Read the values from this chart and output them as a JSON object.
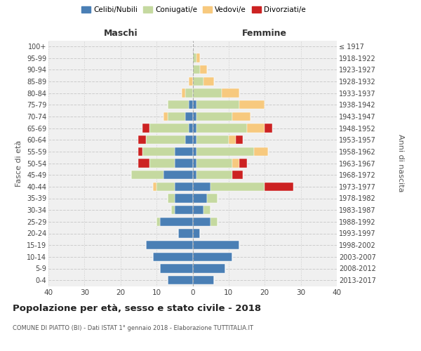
{
  "age_groups": [
    "100+",
    "95-99",
    "90-94",
    "85-89",
    "80-84",
    "75-79",
    "70-74",
    "65-69",
    "60-64",
    "55-59",
    "50-54",
    "45-49",
    "40-44",
    "35-39",
    "30-34",
    "25-29",
    "20-24",
    "15-19",
    "10-14",
    "5-9",
    "0-4"
  ],
  "birth_years": [
    "≤ 1917",
    "1918-1922",
    "1923-1927",
    "1928-1932",
    "1933-1937",
    "1938-1942",
    "1943-1947",
    "1948-1952",
    "1953-1957",
    "1958-1962",
    "1963-1967",
    "1968-1972",
    "1973-1977",
    "1978-1982",
    "1983-1987",
    "1988-1992",
    "1993-1997",
    "1998-2002",
    "2003-2007",
    "2008-2012",
    "2013-2017"
  ],
  "colors": {
    "celibi": "#4a7fb5",
    "coniugati": "#c5d9a0",
    "vedovi": "#f7c97e",
    "divorziati": "#cc2222"
  },
  "maschi": {
    "celibi": [
      0,
      0,
      0,
      0,
      0,
      1,
      2,
      1,
      2,
      5,
      5,
      8,
      5,
      5,
      5,
      9,
      4,
      13,
      11,
      9,
      7
    ],
    "coniugati": [
      0,
      0,
      0,
      0,
      2,
      6,
      5,
      11,
      11,
      9,
      7,
      9,
      5,
      2,
      1,
      1,
      0,
      0,
      0,
      0,
      0
    ],
    "vedovi": [
      0,
      0,
      0,
      1,
      1,
      0,
      1,
      0,
      0,
      0,
      0,
      0,
      1,
      0,
      0,
      0,
      0,
      0,
      0,
      0,
      0
    ],
    "divorziati": [
      0,
      0,
      0,
      0,
      0,
      0,
      0,
      2,
      2,
      1,
      3,
      0,
      0,
      0,
      0,
      0,
      0,
      0,
      0,
      0,
      0
    ]
  },
  "femmine": {
    "celibi": [
      0,
      0,
      0,
      0,
      0,
      1,
      1,
      1,
      1,
      1,
      1,
      1,
      5,
      4,
      3,
      5,
      2,
      13,
      11,
      9,
      6
    ],
    "coniugati": [
      0,
      1,
      2,
      3,
      8,
      12,
      10,
      14,
      9,
      16,
      10,
      10,
      15,
      3,
      2,
      2,
      0,
      0,
      0,
      0,
      0
    ],
    "vedovi": [
      0,
      1,
      2,
      3,
      5,
      7,
      5,
      5,
      2,
      4,
      2,
      0,
      0,
      0,
      0,
      0,
      0,
      0,
      0,
      0,
      0
    ],
    "divorziati": [
      0,
      0,
      0,
      0,
      0,
      0,
      0,
      2,
      2,
      0,
      2,
      3,
      8,
      0,
      0,
      0,
      0,
      0,
      0,
      0,
      0
    ]
  },
  "title": "Popolazione per età, sesso e stato civile - 2018",
  "subtitle": "COMUNE DI PIATTO (BI) - Dati ISTAT 1° gennaio 2018 - Elaborazione TUTTITALIA.IT",
  "xlabel_left": "Maschi",
  "xlabel_right": "Femmine",
  "ylabel_left": "Fasce di età",
  "ylabel_right": "Anni di nascita",
  "xlim": 40,
  "bg_color": "#f0f0f0",
  "grid_color": "#cccccc"
}
